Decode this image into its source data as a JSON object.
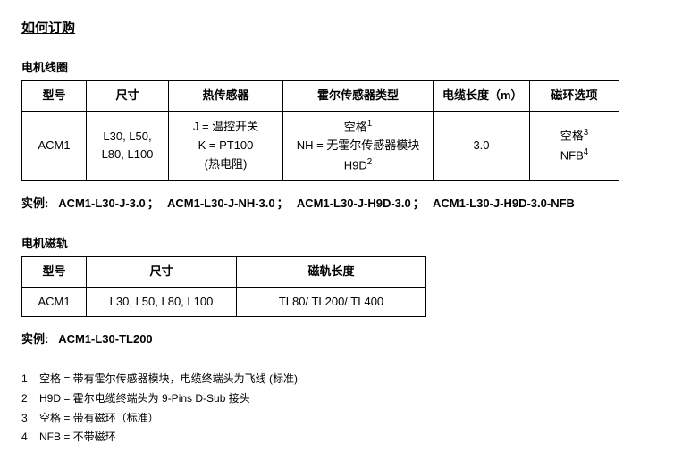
{
  "title": "如何订购",
  "section1": {
    "heading": "电机线圈",
    "headers": [
      "型号",
      "尺寸",
      "热传感器",
      "霍尔传感器类型",
      "电缆长度（m）",
      "磁环选项"
    ],
    "row": {
      "model": "ACM1",
      "size_l1": "L30, L50,",
      "size_l2": "L80, L100",
      "thermal_l1": "J =  温控开关",
      "thermal_l2": "K = PT100",
      "thermal_l3": "(热电阻)",
      "hall_l1": "空格",
      "hall_sup1": "1",
      "hall_l2": "NH =  无霍尔传感器模块",
      "hall_l3": "H9D",
      "hall_sup3": "2",
      "cable": "3.0",
      "ring_l1": "空格",
      "ring_sup1": "3",
      "ring_l2": "NFB",
      "ring_sup2": "4"
    },
    "examples_label": "实例:",
    "examples": [
      "ACM1-L30-J-3.0",
      "ACM1-L30-J-NH-3.0",
      "ACM1-L30-J-H9D-3.0",
      "ACM1-L30-J-H9D-3.0-NFB"
    ]
  },
  "section2": {
    "heading": "电机磁轨",
    "headers": [
      "型号",
      "尺寸",
      "磁轨长度"
    ],
    "row": {
      "model": "ACM1",
      "size": "L30, L50, L80, L100",
      "length": "TL80/ TL200/ TL400"
    },
    "examples_label": "实例:",
    "example": "ACM1-L30-TL200"
  },
  "footnotes": [
    {
      "num": "1",
      "text": "空格  =  带有霍尔传感器模块，电缆终端头为飞线 (标准)"
    },
    {
      "num": "2",
      "text": "H9D =  霍尔电缆终端头为 9-Pins D-Sub 接头"
    },
    {
      "num": "3",
      "text": "空格  =  带有磁环（标准）"
    },
    {
      "num": "4",
      "text": "NFB =  不带磁环"
    }
  ]
}
